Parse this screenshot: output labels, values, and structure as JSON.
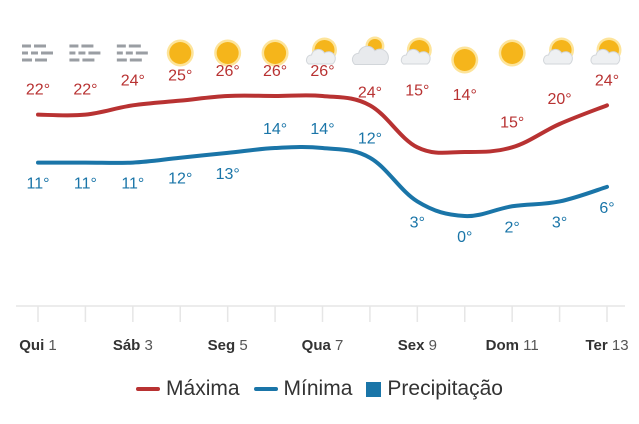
{
  "chart_data": {
    "type": "line",
    "days": [
      "Qui",
      "",
      "Sáb",
      "",
      "Seg",
      "",
      "Qua",
      "",
      "Sex",
      "",
      "Dom",
      "",
      "Ter"
    ],
    "dates": [
      "1",
      "",
      "3",
      "",
      "5",
      "",
      "7",
      "",
      "9",
      "",
      "11",
      "",
      "13"
    ],
    "weather_icons": [
      "fog",
      "fog",
      "fog",
      "sunny",
      "sunny",
      "sunny",
      "partly-cloudy",
      "cloudy",
      "partly-cloudy",
      "sunny",
      "sunny",
      "partly-cloudy",
      "partly-cloudy"
    ],
    "series": [
      {
        "name": "Máxima",
        "color": "#b83232",
        "values": [
          22,
          22,
          24,
          25,
          26,
          26,
          26,
          24,
          15,
          14,
          15,
          20,
          24
        ]
      },
      {
        "name": "Mínima",
        "color": "#1a75a8",
        "values": [
          11,
          11,
          11,
          12,
          13,
          14,
          14,
          12,
          3,
          0,
          2,
          3,
          6
        ]
      }
    ],
    "legend": [
      {
        "label": "Máxima",
        "shape": "line",
        "color": "#b83232"
      },
      {
        "label": "Mínima",
        "shape": "line",
        "color": "#1a75a8"
      },
      {
        "label": "Precipitação",
        "shape": "square",
        "color": "#1a75a8"
      }
    ],
    "unit_suffix": "°",
    "ylim": [
      0,
      26
    ]
  }
}
